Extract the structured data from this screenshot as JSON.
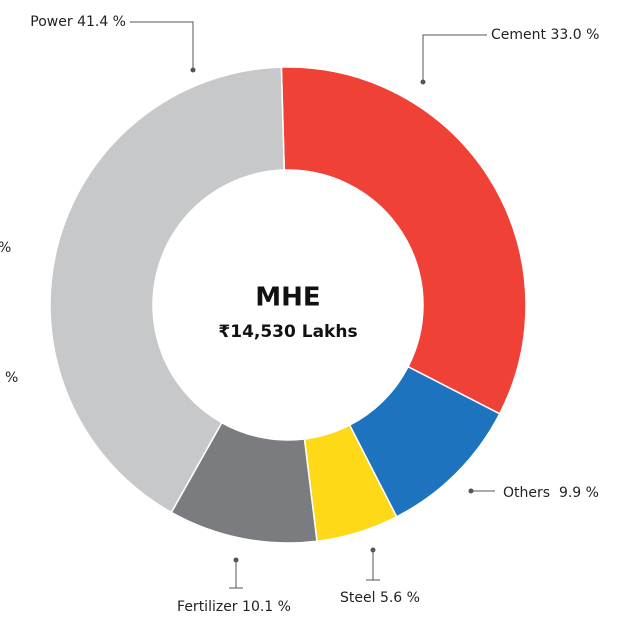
{
  "chart_data": {
    "type": "donut",
    "title": "MHE",
    "subtitle": "₹14,530 Lakhs",
    "categories": [
      "Cement",
      "Others ",
      "Steel",
      "Fertilizer",
      "Power"
    ],
    "values": [
      33.0,
      9.9,
      5.6,
      10.1,
      41.4
    ],
    "value_labels": [
      "33.0 %",
      "9.9 %",
      "5.6 %",
      "10.1 %",
      "41.4 %"
    ],
    "colors": [
      "#ef4136",
      "#1e73be",
      "#fdd918",
      "#7b7c7f",
      "#c7c8ca"
    ],
    "cropped_labels": [
      "%",
      "%"
    ]
  }
}
